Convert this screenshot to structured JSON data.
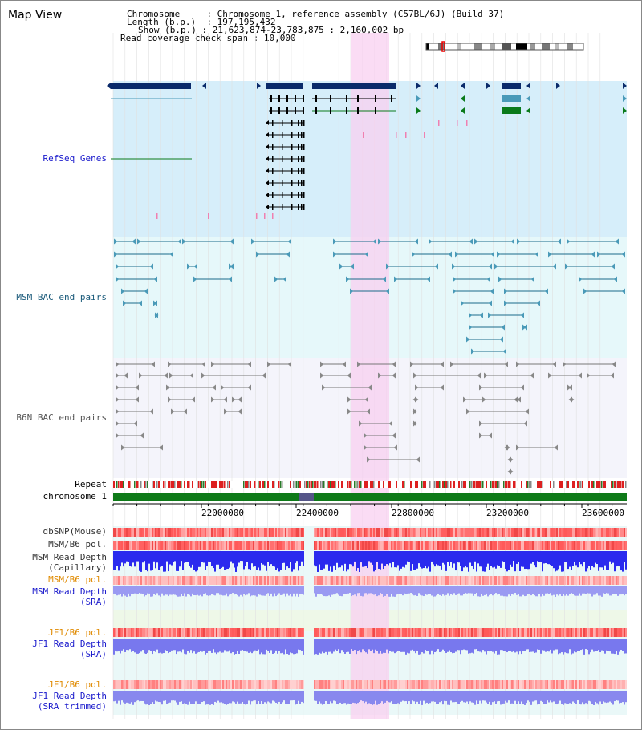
{
  "title": "Map View",
  "assembly": {
    "chromosome_label": "Chromosome",
    "chromosome_value": "Chromosome 1, reference assembly (C57BL/6J) (Build 37)",
    "length_label": "Length (b.p.)",
    "length_value": "197,195,432",
    "show_label": "Show (b.p.)",
    "show_value": "21,623,874-23,783,875 : 2,160,002 bp",
    "coverage_label": "Read coverage check span",
    "coverage_value": "10,000"
  },
  "tracks": {
    "refseq": "RefSeq Genes",
    "msm_bac": "MSM BAC end pairs",
    "b6n_bac": "B6N BAC end pairs",
    "repeat": "Repeat",
    "chromosome": "chromosome 1",
    "dbsnp": "dbSNP(Mouse)",
    "msm_b6_pol": "MSM/B6 pol.",
    "msm_read_depth_cap_1": "MSM Read Depth",
    "msm_read_depth_cap_2": "(Capillary)",
    "msm_b6_pol_sra": "MSM/B6 pol.",
    "msm_read_depth_sra_1": "MSM Read Depth",
    "msm_read_depth_sra_2": "(SRA)",
    "jf1_b6_pol": "JF1/B6 pol.",
    "jf1_read_depth_1": "JF1 Read Depth",
    "jf1_read_depth_2": "(SRA)",
    "jf1_b6_pol_t": "JF1/B6 pol.",
    "jf1_read_depth_t_1": "JF1 Read Depth",
    "jf1_read_depth_t_2": "(SRA trimmed)"
  },
  "axis_ticks": [
    "22000000",
    "22400000",
    "22800000",
    "23200000",
    "23600000"
  ],
  "colors": {
    "refseq_bg": "#d6eefa",
    "msm_bg": "#e6f8fa",
    "b6n_bg": "#f4f4fb",
    "highlight": "#f8d0f0",
    "gene_navy": "#0a2a6a",
    "gene_teal": "#4a9ab8",
    "gene_green": "#0a7a1a",
    "msm_line": "#1a6a8a",
    "b6n_line": "#777777",
    "label_blue": "#1a1acc",
    "label_teal": "#1a5a7a",
    "label_orange": "#e08a00",
    "chrom_green": "#0e7a18",
    "depth_blue": "#2a2aee",
    "depth_light": "#8080f0"
  }
}
